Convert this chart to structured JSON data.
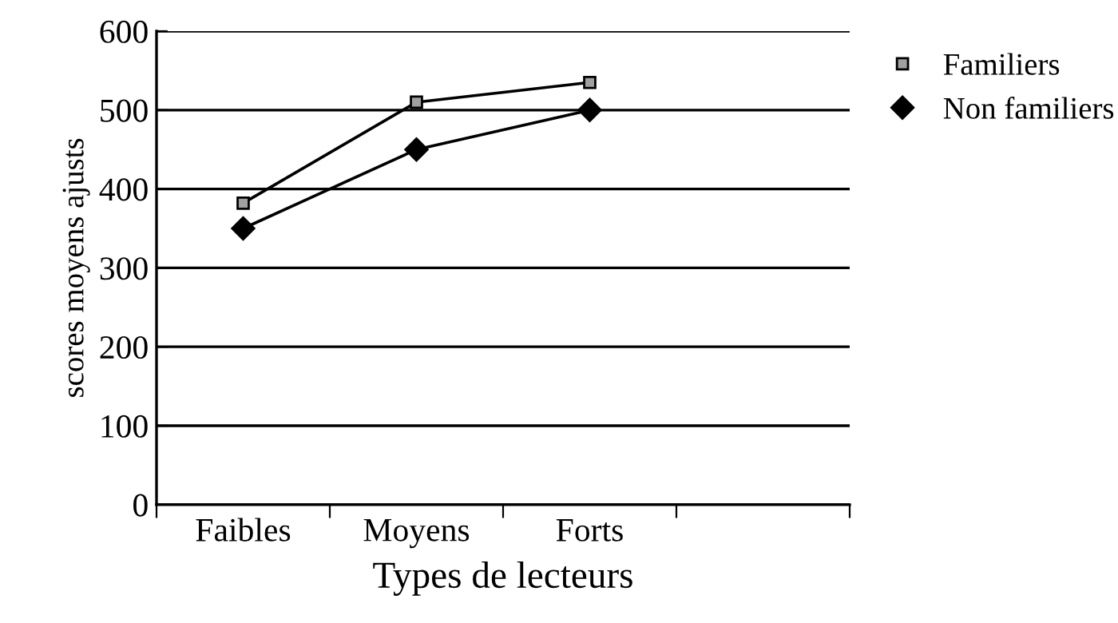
{
  "chart_data": {
    "type": "line",
    "xlabel": "Types de lecteurs",
    "ylabel": "scores moyens ajusts",
    "categories": [
      "Faibles",
      "Moyens",
      "Forts",
      null
    ],
    "series": [
      {
        "name": "Familiers",
        "color": "#000000",
        "marker": "square",
        "values": [
          382,
          510,
          535,
          null
        ]
      },
      {
        "name": "Non familiers",
        "color": "#000000",
        "marker": "diamond",
        "values": [
          350,
          450,
          500,
          null
        ]
      }
    ],
    "ylim": [
      0,
      600
    ],
    "yticks": [
      0,
      100,
      200,
      300,
      400,
      500,
      600
    ],
    "grid": "y",
    "legend": "top right",
    "line_style": "solid"
  }
}
